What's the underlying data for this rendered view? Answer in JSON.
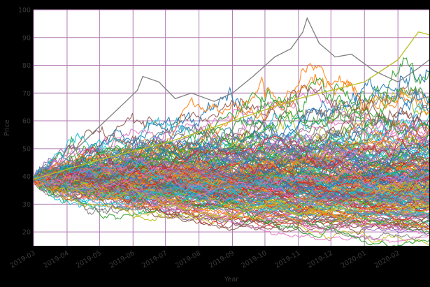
{
  "chart_data": {
    "type": "line",
    "title": "",
    "xlabel": "Year",
    "ylabel": "Price",
    "x_tick_labels": [
      "2019-03",
      "2019-04",
      "2019-05",
      "2019-06",
      "2019-07",
      "2019-08",
      "2019-09",
      "2019-10",
      "2019-11",
      "2019-12",
      "2020-01",
      "2020-02"
    ],
    "x_range": [
      "2019-03-01",
      "2020-03-01"
    ],
    "ylim": [
      15,
      100
    ],
    "y_ticks": [
      20,
      30,
      40,
      50,
      60,
      70,
      80,
      90,
      100
    ],
    "grid": true,
    "legend": "none",
    "series_description": "Monte Carlo simulated price paths, all starting near 39 on 2019-03-01",
    "start_value": 39,
    "num_paths": 220,
    "palette": [
      "#1f77b4",
      "#ff7f0e",
      "#2ca02c",
      "#d62728",
      "#9467bd",
      "#8c564b",
      "#e377c2",
      "#7f7f7f",
      "#bcbd22",
      "#17becf"
    ],
    "highlighted_series": [
      {
        "color": "#7f7f7f",
        "points": [
          [
            "2019-03-01",
            39
          ],
          [
            "2019-03-20",
            42
          ],
          [
            "2019-04-10",
            50
          ],
          [
            "2019-05-01",
            58
          ],
          [
            "2019-05-20",
            65
          ],
          [
            "2019-06-05",
            71
          ],
          [
            "2019-06-10",
            76
          ],
          [
            "2019-06-25",
            74
          ],
          [
            "2019-07-10",
            68
          ],
          [
            "2019-07-25",
            70
          ],
          [
            "2019-08-15",
            67
          ],
          [
            "2019-09-01",
            70
          ],
          [
            "2019-09-20",
            76
          ],
          [
            "2019-10-10",
            83
          ],
          [
            "2019-10-25",
            86
          ],
          [
            "2019-11-05",
            92
          ],
          [
            "2019-11-09",
            97
          ],
          [
            "2019-11-20",
            88
          ],
          [
            "2019-12-05",
            83
          ],
          [
            "2019-12-20",
            84
          ],
          [
            "2020-01-10",
            78
          ],
          [
            "2020-02-01",
            74
          ],
          [
            "2020-02-20",
            79
          ],
          [
            "2020-03-01",
            82
          ]
        ]
      },
      {
        "color": "#bcbd22",
        "points": [
          [
            "2019-03-01",
            39
          ],
          [
            "2019-05-01",
            46
          ],
          [
            "2019-07-01",
            52
          ],
          [
            "2019-09-01",
            60
          ],
          [
            "2019-11-01",
            68
          ],
          [
            "2020-01-01",
            74
          ],
          [
            "2020-02-01",
            82
          ],
          [
            "2020-02-20",
            92
          ],
          [
            "2020-03-01",
            91
          ]
        ]
      }
    ]
  },
  "colors": {
    "background": "#000000",
    "plot_background": "#ffffff",
    "grid": "#b07ab0",
    "text": "#3c3c3c"
  }
}
